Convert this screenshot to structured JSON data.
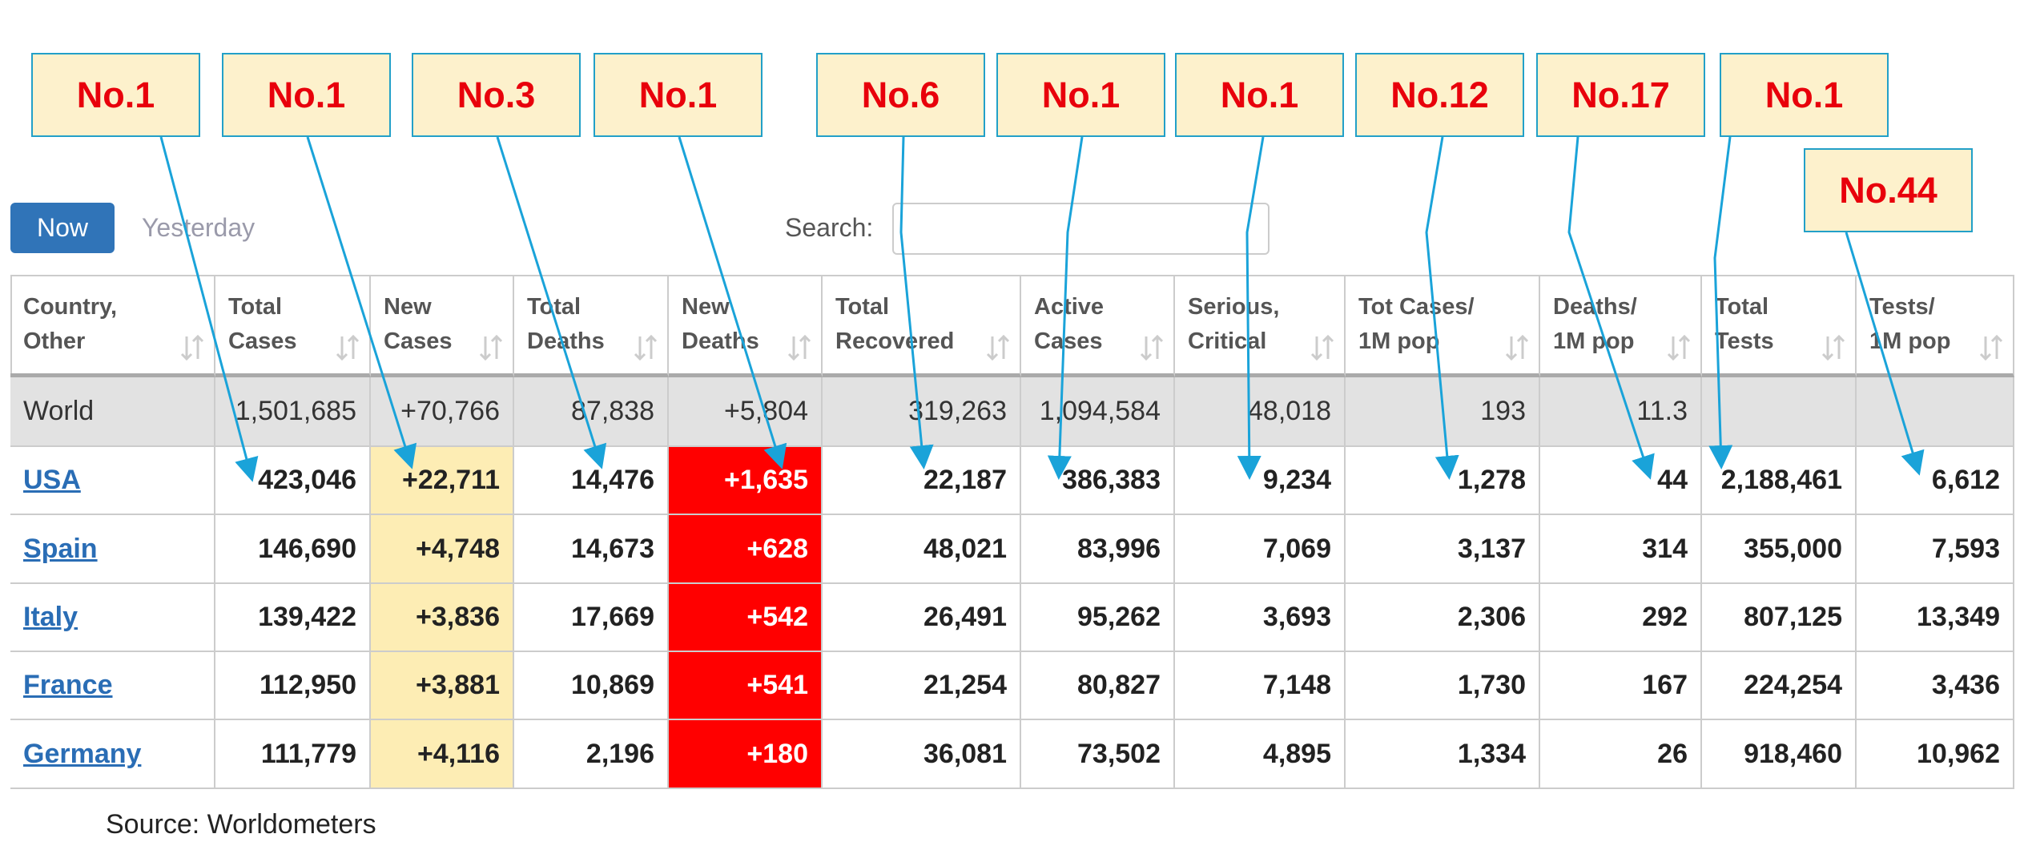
{
  "tabs": [
    "Now",
    "Yesterday"
  ],
  "search_label": "Search:",
  "table": {
    "headers": [
      [
        "Country,",
        "Other"
      ],
      [
        "Total",
        "Cases"
      ],
      [
        "New",
        "Cases"
      ],
      [
        "Total",
        "Deaths"
      ],
      [
        "New",
        "Deaths"
      ],
      [
        "Total",
        "Recovered"
      ],
      [
        "Active",
        "Cases"
      ],
      [
        "Serious,",
        "Critical"
      ],
      [
        "Tot Cases/",
        "1M pop"
      ],
      [
        "Deaths/",
        "1M pop"
      ],
      [
        "Total",
        "Tests"
      ],
      [
        "Tests/",
        "1M pop"
      ]
    ],
    "rows": [
      [
        "World",
        "1,501,685",
        "+70,766",
        "87,838",
        "+5,804",
        "319,263",
        "1,094,584",
        "48,018",
        "193",
        "11.3",
        null,
        null
      ],
      [
        "USA",
        "423,046",
        "+22,711",
        "14,476",
        "+1,635",
        "22,187",
        "386,383",
        "9,234",
        "1,278",
        "44",
        "2,188,461",
        "6,612"
      ],
      [
        "Spain",
        "146,690",
        "+4,748",
        "14,673",
        "+628",
        "48,021",
        "83,996",
        "7,069",
        "3,137",
        "314",
        "355,000",
        "7,593"
      ],
      [
        "Italy",
        "139,422",
        "+3,836",
        "17,669",
        "+542",
        "26,491",
        "95,262",
        "3,693",
        "2,306",
        "292",
        "807,125",
        "13,349"
      ],
      [
        "France",
        "112,950",
        "+3,881",
        "10,869",
        "+541",
        "21,254",
        "80,827",
        "7,148",
        "1,730",
        "167",
        "224,254",
        "3,436"
      ],
      [
        "Germany",
        "111,779",
        "+4,116",
        "2,196",
        "+180",
        "36,081",
        "73,502",
        "4,895",
        "1,334",
        "26",
        "918,460",
        "10,962"
      ]
    ]
  },
  "callouts": [
    "No.1",
    "No.1",
    "No.3",
    "No.1",
    "No.6",
    "No.1",
    "No.1",
    "No.12",
    "No.17",
    "No.1",
    "No.44"
  ],
  "source": "Source: Worldometers"
}
